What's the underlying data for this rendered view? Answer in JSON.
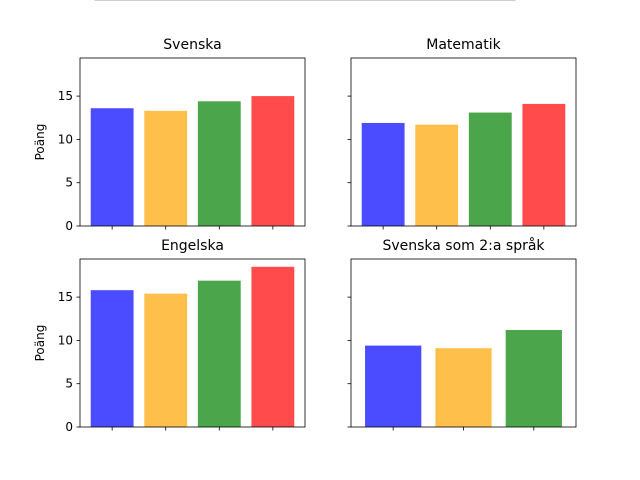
{
  "chart_data": [
    {
      "type": "bar",
      "title": "Svenska",
      "ylabel": "Poäng",
      "ylim": [
        0,
        19.4
      ],
      "yticks": [
        0,
        5,
        10,
        15
      ],
      "bars": [
        {
          "value": 13.6,
          "color": "#4b4bff"
        },
        {
          "value": 13.3,
          "color": "#ffbf4b"
        },
        {
          "value": 14.4,
          "color": "#4ba64b"
        },
        {
          "value": 15.0,
          "color": "#ff4b4b"
        }
      ]
    },
    {
      "type": "bar",
      "title": "Matematik",
      "ylabel": "",
      "ylim": [
        0,
        19.4
      ],
      "yticks": [
        0,
        5,
        10,
        15
      ],
      "bars": [
        {
          "value": 11.9,
          "color": "#4b4bff"
        },
        {
          "value": 11.7,
          "color": "#ffbf4b"
        },
        {
          "value": 13.1,
          "color": "#4ba64b"
        },
        {
          "value": 14.1,
          "color": "#ff4b4b"
        }
      ]
    },
    {
      "type": "bar",
      "title": "Engelska",
      "ylabel": "Poäng",
      "ylim": [
        0,
        19.4
      ],
      "yticks": [
        0,
        5,
        10,
        15
      ],
      "bars": [
        {
          "value": 15.8,
          "color": "#4b4bff"
        },
        {
          "value": 15.4,
          "color": "#ffbf4b"
        },
        {
          "value": 16.9,
          "color": "#4ba64b"
        },
        {
          "value": 18.5,
          "color": "#ff4b4b"
        }
      ]
    },
    {
      "type": "bar",
      "title": "Svenska som 2:a språk",
      "ylabel": "",
      "ylim": [
        0,
        19.4
      ],
      "yticks": [
        0,
        5,
        10,
        15
      ],
      "bars": [
        {
          "value": 9.4,
          "color": "#4b4bff"
        },
        {
          "value": 9.1,
          "color": "#ffbf4b"
        },
        {
          "value": 11.2,
          "color": "#4ba64b"
        }
      ]
    }
  ]
}
